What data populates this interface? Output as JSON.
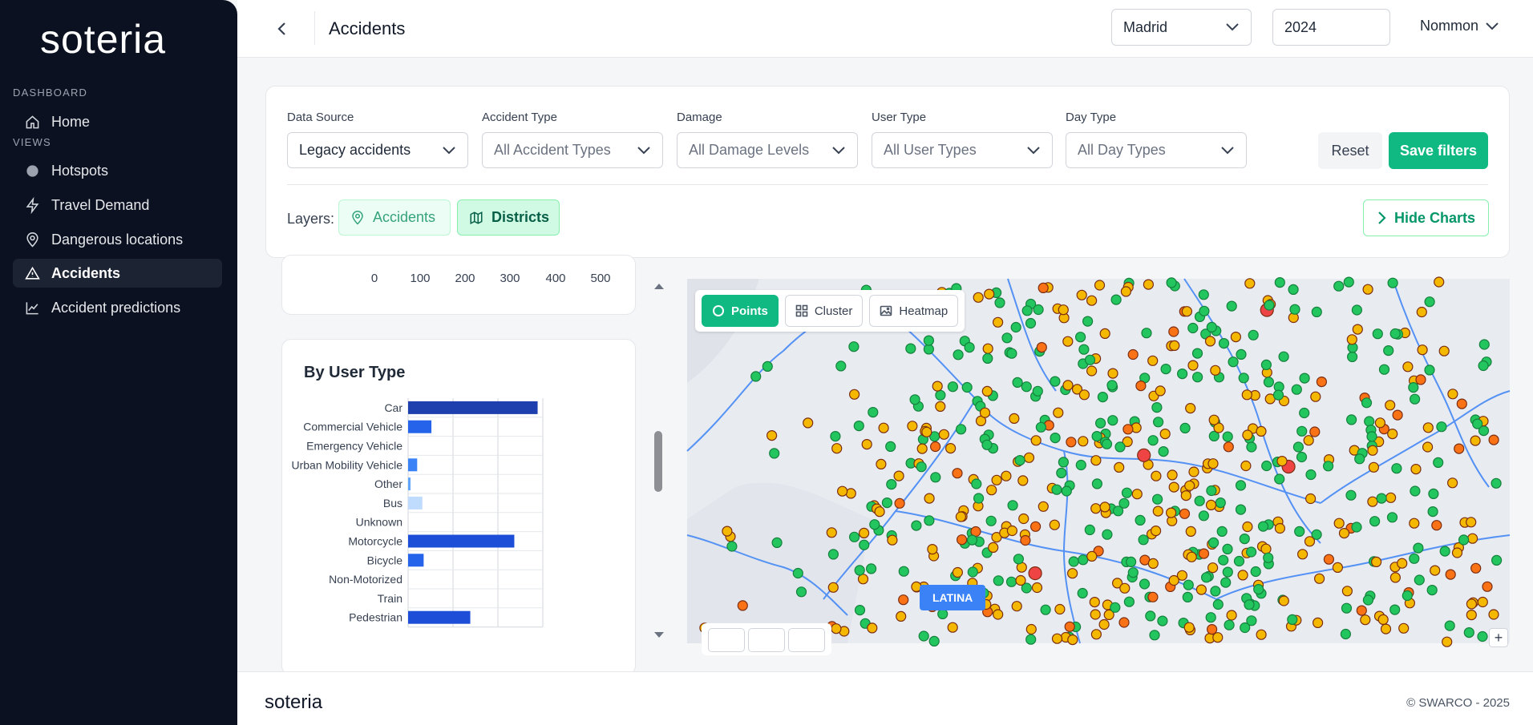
{
  "sidebar": {
    "logo_text": "soteria",
    "section_dashboard": "DASHBOARD",
    "section_views": "VIEWS",
    "items": [
      {
        "label": "Home",
        "icon": "home-icon"
      },
      {
        "label": "Hotspots",
        "icon": "dot-icon"
      },
      {
        "label": "Travel Demand",
        "icon": "bolt-icon"
      },
      {
        "label": "Dangerous locations",
        "icon": "map-pin-icon"
      },
      {
        "label": "Accidents",
        "icon": "warning-icon",
        "active": true
      },
      {
        "label": "Accident predictions",
        "icon": "trend-icon"
      }
    ]
  },
  "header": {
    "title": "Accidents",
    "city": "Madrid",
    "year": "2024",
    "user": "Nommon"
  },
  "filters": {
    "data_source": {
      "label": "Data Source",
      "value": "Legacy accidents"
    },
    "accident_type": {
      "label": "Accident Type",
      "value": "All Accident Types"
    },
    "damage": {
      "label": "Damage",
      "value": "All Damage Levels"
    },
    "user_type": {
      "label": "User Type",
      "value": "All User Types"
    },
    "day_type": {
      "label": "Day Type",
      "value": "All Day Types"
    },
    "reset_label": "Reset",
    "save_label": "Save filters",
    "layers_label": "Layers:",
    "layer_accidents": "Accidents",
    "layer_districts": "Districts",
    "hide_charts": "Hide Charts"
  },
  "prev_chart_ticks": [
    "0",
    "100",
    "200",
    "300",
    "400",
    "500"
  ],
  "chart_data": {
    "type": "bar",
    "orientation": "horizontal",
    "title": "By User Type",
    "categories": [
      "Car",
      "Commercial Vehicle",
      "Emergency Vehicle",
      "Urban Mobility Vehicle",
      "Other",
      "Bus",
      "Unknown",
      "Motorcycle",
      "Bicycle",
      "Non-Motorized",
      "Train",
      "Pedestrian"
    ],
    "values": [
      1000,
      180,
      0,
      70,
      15,
      110,
      0,
      820,
      120,
      0,
      0,
      480
    ],
    "colors": [
      "#1e40af",
      "#2563eb",
      "#2563eb",
      "#3b82f6",
      "#60a5fa",
      "#bfdbfe",
      "#2563eb",
      "#1d4ed8",
      "#2563eb",
      "#2563eb",
      "#2563eb",
      "#1d4ed8"
    ],
    "xlim": [
      0,
      1040
    ],
    "grid": true
  },
  "map": {
    "modes": [
      "Points",
      "Cluster",
      "Heatmap"
    ],
    "active_mode": "Points",
    "district_label": "LATINA",
    "zoom_in": "+",
    "point_colors": {
      "low": "#22c55e",
      "medium": "#f5b800",
      "high": "#f97316",
      "severe": "#ef4444"
    }
  },
  "footer": {
    "logo_text": "soteria",
    "copyright": "© SWARCO - 2025"
  }
}
